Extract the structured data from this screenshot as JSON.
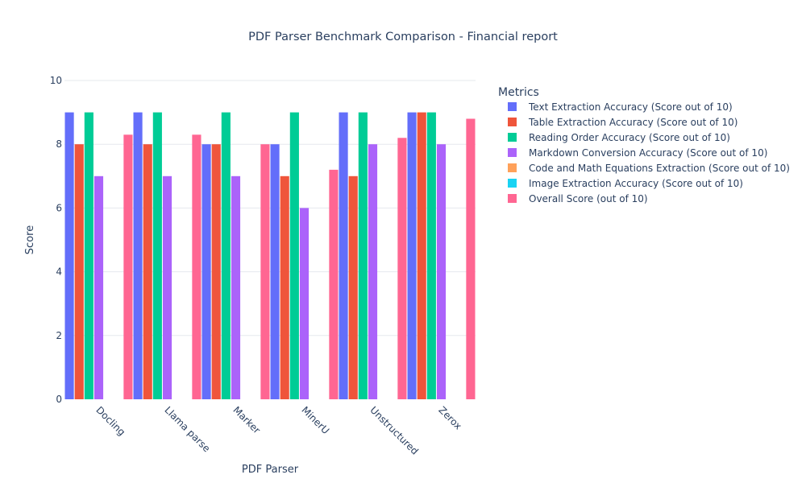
{
  "chart_data": {
    "type": "bar",
    "title": "PDF Parser Benchmark Comparison - Financial report",
    "xlabel": "PDF Parser",
    "ylabel": "Score",
    "ylim": [
      0,
      10
    ],
    "yticks": [
      0,
      2,
      4,
      6,
      8,
      10
    ],
    "grid": true,
    "legend_title": "Metrics",
    "legend_position": "right",
    "categories": [
      "Docling",
      "Llama parse",
      "Marker",
      "MinerU",
      "Unstructured",
      "Zerox"
    ],
    "series": [
      {
        "name": "Text Extraction Accuracy (Score out of 10)",
        "color": "#636efa",
        "values": [
          9,
          9,
          8,
          8,
          9,
          9
        ]
      },
      {
        "name": "Table Extraction Accuracy (Score out of 10)",
        "color": "#ef553b",
        "values": [
          8,
          8,
          8,
          7,
          7,
          9
        ]
      },
      {
        "name": "Reading Order Accuracy (Score out of 10)",
        "color": "#00cc96",
        "values": [
          9,
          9,
          9,
          9,
          9,
          9
        ]
      },
      {
        "name": "Markdown Conversion Accuracy (Score out of 10)",
        "color": "#ab63fa",
        "values": [
          7,
          7,
          7,
          6,
          8,
          8
        ]
      },
      {
        "name": "Code and Math Equations Extraction (Score out of 10)",
        "color": "#ffa15a",
        "values": [
          0,
          0,
          0,
          0,
          0,
          0
        ]
      },
      {
        "name": "Image Extraction Accuracy (Score out of 10)",
        "color": "#19d3f3",
        "values": [
          0,
          0,
          0,
          0,
          0,
          0
        ]
      },
      {
        "name": "Overall Score (out of 10)",
        "color": "#ff6692",
        "values": [
          8.3,
          8.3,
          8.0,
          7.2,
          8.2,
          8.8
        ]
      }
    ]
  }
}
